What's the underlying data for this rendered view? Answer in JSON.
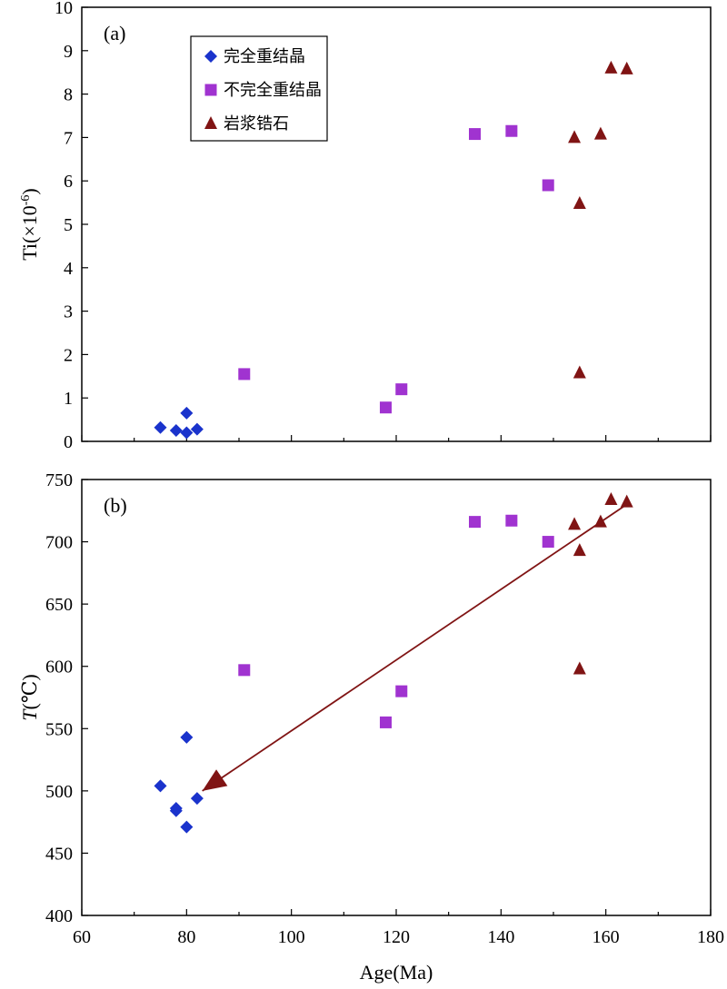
{
  "chart_data": [
    {
      "panel": "(a)",
      "type": "scatter",
      "xlim": [
        60,
        180
      ],
      "ylim": [
        0,
        10
      ],
      "ylabel": {
        "prefix": "Ti(×10",
        "sup": "-6",
        "suffix": ")"
      },
      "xlabel": "",
      "yticks": [
        0,
        1,
        2,
        3,
        4,
        5,
        6,
        7,
        8,
        9,
        10
      ],
      "xticks": [
        60,
        80,
        100,
        120,
        140,
        160,
        180
      ],
      "show_x_tick_labels": false,
      "legend": {
        "placement": "top-left",
        "entries": [
          "完全重结晶",
          "不完全重结晶",
          "岩浆锆石"
        ]
      },
      "series": [
        {
          "name": "完全重结晶",
          "marker": "diamond",
          "color": "#1a33cc",
          "points": [
            [
              75,
              0.32
            ],
            [
              78,
              0.25
            ],
            [
              80,
              0.65
            ],
            [
              80,
              0.2
            ],
            [
              82,
              0.28
            ]
          ]
        },
        {
          "name": "不完全重结晶",
          "marker": "square",
          "color": "#a033d0",
          "points": [
            [
              91,
              1.55
            ],
            [
              118,
              0.78
            ],
            [
              121,
              1.2
            ],
            [
              135,
              7.08
            ],
            [
              142,
              7.15
            ],
            [
              149,
              5.9
            ]
          ]
        },
        {
          "name": "岩浆锆石",
          "marker": "triangle",
          "color": "#801414",
          "points": [
            [
              154,
              7.0
            ],
            [
              155,
              5.48
            ],
            [
              155,
              1.58
            ],
            [
              159,
              7.08
            ],
            [
              161,
              8.6
            ],
            [
              164,
              8.58
            ]
          ]
        }
      ]
    },
    {
      "panel": "(b)",
      "type": "scatter",
      "xlim": [
        60,
        180
      ],
      "ylim": [
        400,
        750
      ],
      "ylabel": {
        "italic": "T",
        "suffix": "(℃)"
      },
      "xlabel": "Age(Ma)",
      "yticks": [
        400,
        450,
        500,
        550,
        600,
        650,
        700,
        750
      ],
      "xticks": [
        60,
        80,
        100,
        120,
        140,
        160,
        180
      ],
      "show_x_tick_labels": true,
      "series": [
        {
          "name": "完全重结晶",
          "marker": "diamond",
          "color": "#1a33cc",
          "points": [
            [
              75,
              504
            ],
            [
              78,
              486
            ],
            [
              78,
              484
            ],
            [
              80,
              543
            ],
            [
              80,
              471
            ],
            [
              82,
              494
            ]
          ]
        },
        {
          "name": "不完全重结晶",
          "marker": "square",
          "color": "#a033d0",
          "points": [
            [
              91,
              597
            ],
            [
              118,
              555
            ],
            [
              121,
              580
            ],
            [
              135,
              716
            ],
            [
              142,
              717
            ],
            [
              149,
              700
            ]
          ]
        },
        {
          "name": "岩浆锆石",
          "marker": "triangle",
          "color": "#801414",
          "points": [
            [
              154,
              714
            ],
            [
              155,
              693
            ],
            [
              155,
              598
            ],
            [
              159,
              716
            ],
            [
              161,
              734
            ],
            [
              164,
              732
            ]
          ]
        }
      ],
      "trend_arrow": {
        "from": [
          164,
          730
        ],
        "to": [
          83,
          500
        ],
        "color": "#801414"
      }
    }
  ]
}
